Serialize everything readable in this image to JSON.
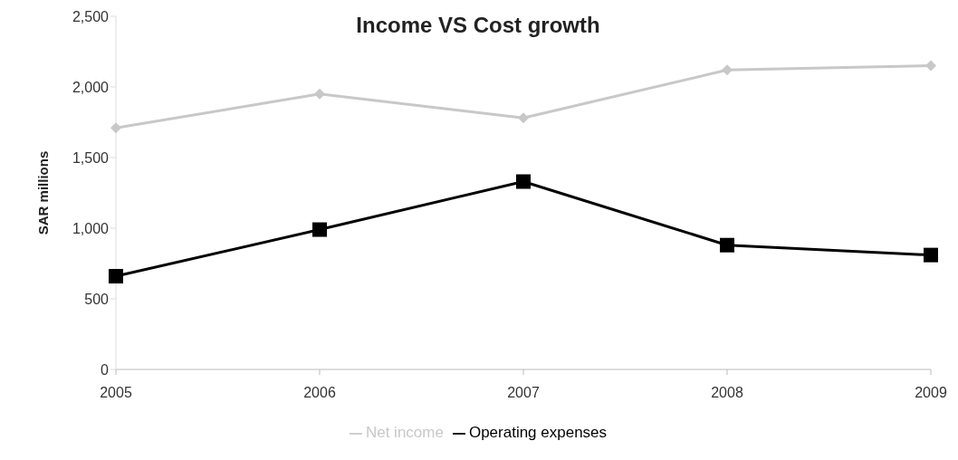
{
  "chart_data": {
    "type": "line",
    "title": "Income VS Cost growth",
    "ylabel": "SAR millions",
    "categories": [
      "2005",
      "2006",
      "2007",
      "2008",
      "2009"
    ],
    "series": [
      {
        "name": "Net income",
        "color": "#c8c8c8",
        "marker": "diamond",
        "values": [
          1710,
          1950,
          1780,
          2120,
          2150
        ]
      },
      {
        "name": "Operating expenses",
        "color": "#000000",
        "marker": "square",
        "values": [
          660,
          990,
          1330,
          880,
          810
        ]
      }
    ],
    "ylim": [
      0,
      2500
    ],
    "yticks": [
      {
        "value": 0,
        "label": "0"
      },
      {
        "value": 500,
        "label": "500"
      },
      {
        "value": 1000,
        "label": "1,000"
      },
      {
        "value": 1500,
        "label": "1,500"
      },
      {
        "value": 2000,
        "label": "2,000"
      },
      {
        "value": 2500,
        "label": "2,500"
      }
    ],
    "grid": false,
    "legend": "bottom"
  }
}
